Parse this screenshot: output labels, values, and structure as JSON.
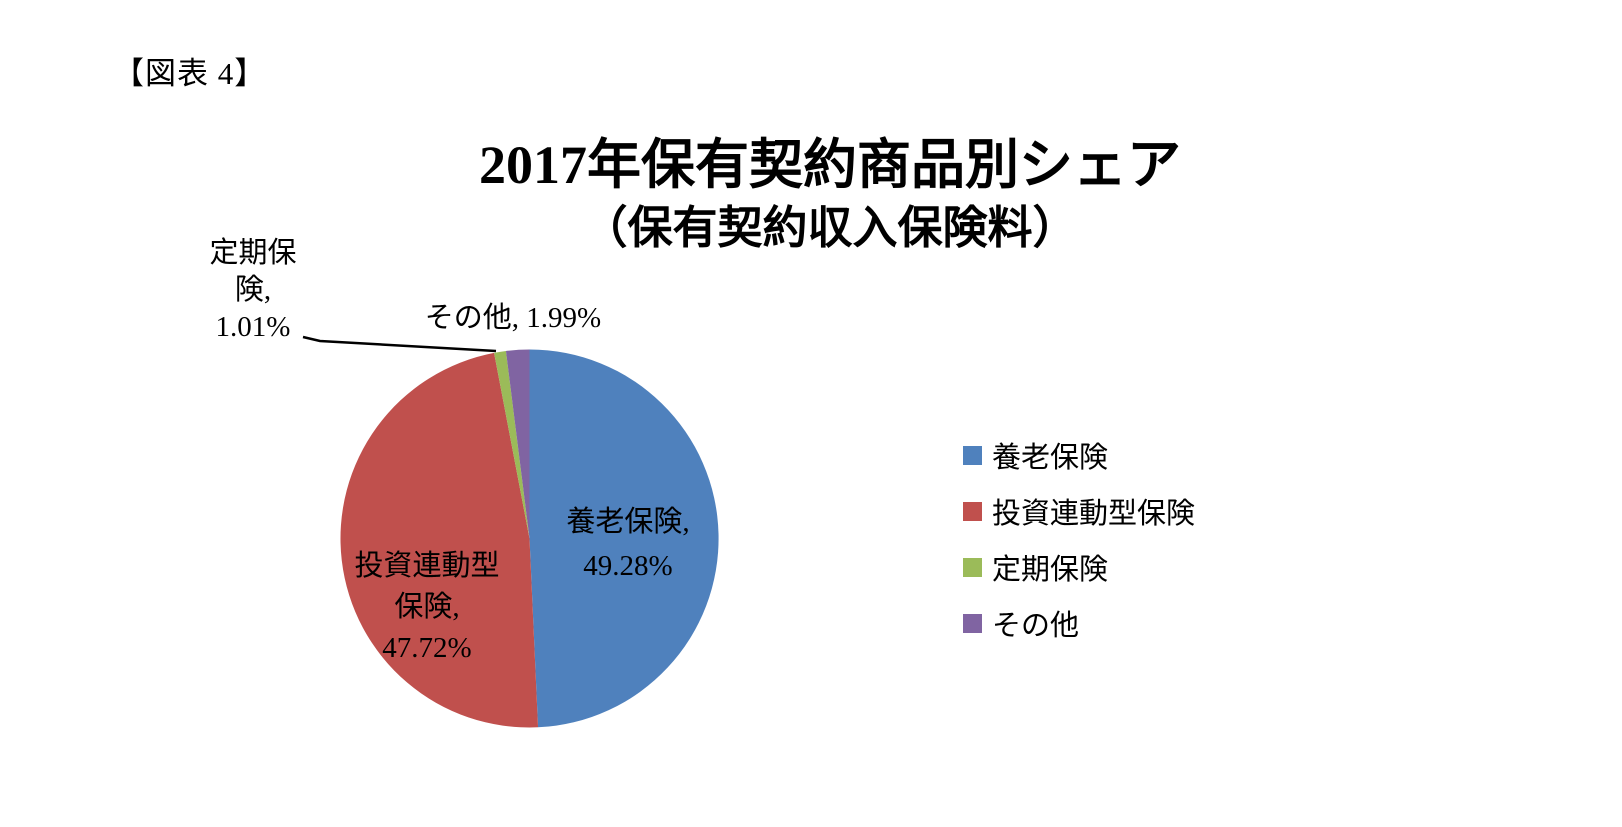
{
  "figure_label": "【図表 4】",
  "chart_data": {
    "type": "pie",
    "title": "2017年保有契約商品別シェア（保有契約収入保険料）",
    "title_line1": "2017年保有契約商品別シェア",
    "title_line2": "（保有契約収入保険料）",
    "unit": "%",
    "start_angle": "12-oclock",
    "direction": "clockwise",
    "legend_position": "right",
    "slices": [
      {
        "label": "養老保険",
        "value": 49.28,
        "percent_text": "49.28%",
        "color": "#4F81BD"
      },
      {
        "label": "投資連動型保険",
        "value": 47.72,
        "percent_text": "47.72%",
        "color": "#C0504D"
      },
      {
        "label": "定期保険",
        "value": 1.01,
        "percent_text": "1.01%",
        "color": "#9BBB59"
      },
      {
        "label": "その他",
        "value": 1.99,
        "percent_text": "1.99%",
        "color": "#8064A2"
      }
    ]
  },
  "data_labels": {
    "endowment": {
      "lines": [
        "養老保険,",
        "49.28%"
      ]
    },
    "investment": {
      "lines": [
        "投資連動型",
        "保険,",
        "47.72%"
      ]
    },
    "term": {
      "lines": [
        "定期保",
        "険,",
        "1.01%"
      ]
    },
    "other": {
      "text": "その他, 1.99%"
    }
  },
  "legend": {
    "items": [
      {
        "label": "養老保険",
        "color": "#4F81BD"
      },
      {
        "label": "投資連動型保険",
        "color": "#C0504D"
      },
      {
        "label": "定期保険",
        "color": "#9BBB59"
      },
      {
        "label": "その他",
        "color": "#8064A2"
      }
    ]
  }
}
